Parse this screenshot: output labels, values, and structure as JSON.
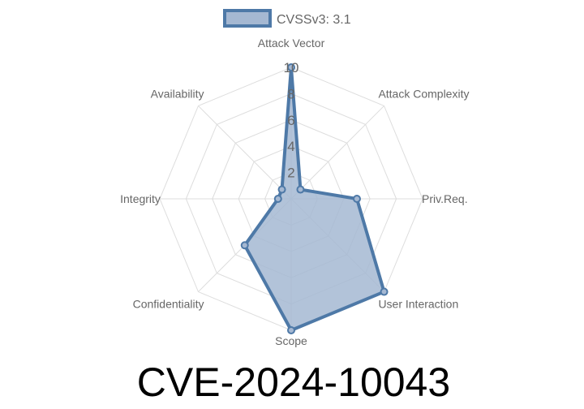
{
  "chart_data": {
    "type": "radar",
    "axes": [
      "Attack Vector",
      "Attack Complexity",
      "Priv.Req.",
      "User Interaction",
      "Scope",
      "Confidentiality",
      "Integrity",
      "Availability"
    ],
    "series": [
      {
        "name": "CVSSv3: 3.1",
        "values": [
          10,
          1,
          5,
          10,
          10,
          5,
          1,
          1
        ]
      }
    ],
    "rlim": [
      0,
      10
    ],
    "ticks": [
      "2",
      "4",
      "6",
      "8",
      "10"
    ],
    "tick_values": [
      2,
      4,
      6,
      8,
      10
    ],
    "grid": true,
    "legend": "top",
    "colors": {
      "line": "#4e79a7",
      "fill": "#a5b8d2",
      "grid": "#dddddd"
    }
  },
  "footer_title": "CVE-2024-10043"
}
